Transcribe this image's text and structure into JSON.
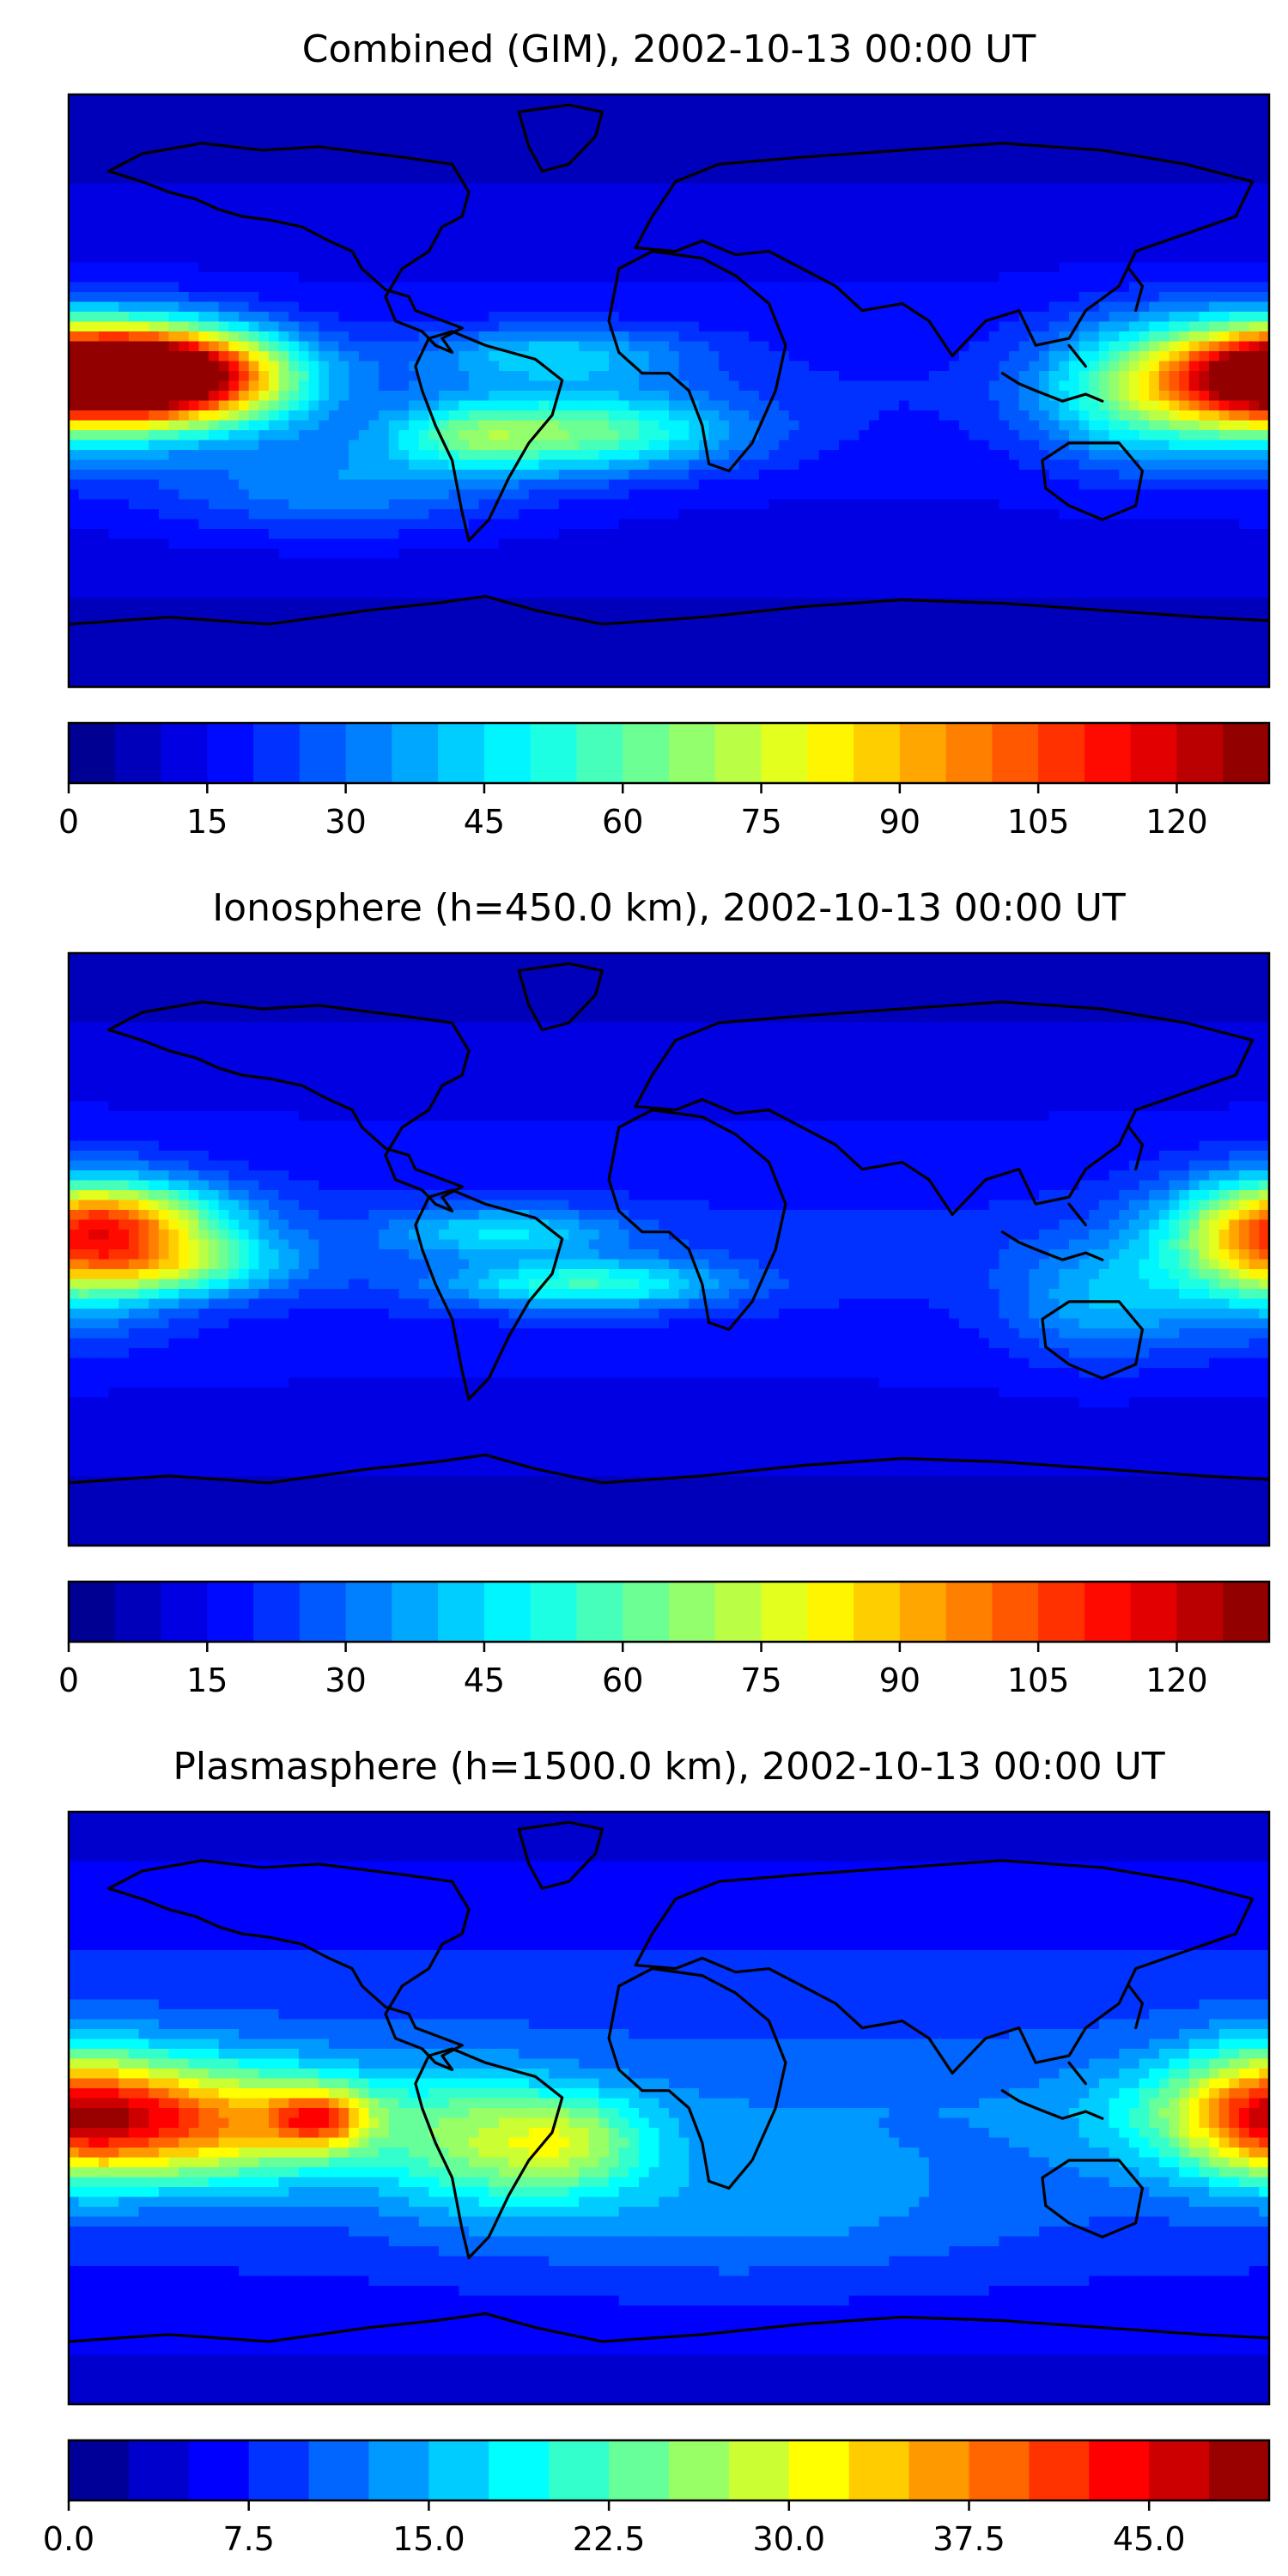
{
  "panels": [
    {
      "title": "Combined (GIM), 2002-10-13 00:00 UT",
      "colorbar": {
        "min": 0,
        "max": 130,
        "levels": 26,
        "ticks": [
          "0",
          "15",
          "30",
          "45",
          "60",
          "75",
          "90",
          "105",
          "120"
        ],
        "tick_values": [
          0,
          15,
          30,
          45,
          60,
          75,
          90,
          105,
          120
        ]
      },
      "blobs": [
        {
          "lon": -160,
          "lat": 5,
          "sx": 28,
          "sy": 9,
          "amp": 95
        },
        {
          "lon": -140,
          "lat": 3,
          "sx": 22,
          "sy": 10,
          "amp": 40
        },
        {
          "lon": 180,
          "lat": 3,
          "sx": 24,
          "sy": 12,
          "amp": 65
        },
        {
          "lon": 140,
          "lat": 0,
          "sx": 22,
          "sy": 14,
          "amp": 35
        },
        {
          "lon": -30,
          "lat": -12,
          "sx": 35,
          "sy": 8,
          "amp": 45
        },
        {
          "lon": -60,
          "lat": -13,
          "sx": 14,
          "sy": 6,
          "amp": 15
        },
        {
          "lon": -35,
          "lat": 10,
          "sx": 30,
          "sy": 6,
          "amp": 25
        },
        {
          "lon": -100,
          "lat": -28,
          "sx": 40,
          "sy": 10,
          "amp": 18
        }
      ],
      "base": 20
    },
    {
      "title": "Ionosphere  (h=450.0 km), 2002-10-13 00:00 UT",
      "colorbar": {
        "min": 0,
        "max": 130,
        "levels": 26,
        "ticks": [
          "0",
          "15",
          "30",
          "45",
          "60",
          "75",
          "90",
          "105",
          "120"
        ],
        "tick_values": [
          0,
          15,
          30,
          45,
          60,
          75,
          90,
          105,
          120
        ]
      },
      "blobs": [
        {
          "lon": -165,
          "lat": 8,
          "sx": 25,
          "sy": 8,
          "amp": 55
        },
        {
          "lon": -150,
          "lat": -5,
          "sx": 25,
          "sy": 6,
          "amp": 35
        },
        {
          "lon": 180,
          "lat": 0,
          "sx": 22,
          "sy": 14,
          "amp": 45
        },
        {
          "lon": -25,
          "lat": -10,
          "sx": 30,
          "sy": 5,
          "amp": 35
        },
        {
          "lon": -50,
          "lat": 5,
          "sx": 25,
          "sy": 5,
          "amp": 25
        },
        {
          "lon": 130,
          "lat": -15,
          "sx": 20,
          "sy": 12,
          "amp": 20
        }
      ],
      "base": 22
    },
    {
      "title": "Plasmasphere (h=1500.0 km), 2002-10-13 00:00 UT",
      "colorbar": {
        "min": 0,
        "max": 50,
        "levels": 20,
        "ticks": [
          "0.0",
          "7.5",
          "15.0",
          "22.5",
          "30.0",
          "37.5",
          "45.0"
        ],
        "tick_values": [
          0,
          7.5,
          15,
          22.5,
          30,
          37.5,
          45
        ]
      },
      "blobs": [
        {
          "lon": -170,
          "lat": -3,
          "sx": 35,
          "sy": 12,
          "amp": 20
        },
        {
          "lon": -105,
          "lat": -3,
          "sx": 10,
          "sy": 6,
          "amp": 18
        },
        {
          "lon": -130,
          "lat": -5,
          "sx": 35,
          "sy": 12,
          "amp": 14
        },
        {
          "lon": -30,
          "lat": -10,
          "sx": 18,
          "sy": 10,
          "amp": 14
        },
        {
          "lon": -60,
          "lat": -10,
          "sx": 20,
          "sy": 14,
          "amp": 10
        },
        {
          "lon": 180,
          "lat": 0,
          "sx": 18,
          "sy": 14,
          "amp": 12
        },
        {
          "lon": 20,
          "lat": -30,
          "sx": 60,
          "sy": 15,
          "amp": 5
        }
      ],
      "base": 12
    }
  ]
}
